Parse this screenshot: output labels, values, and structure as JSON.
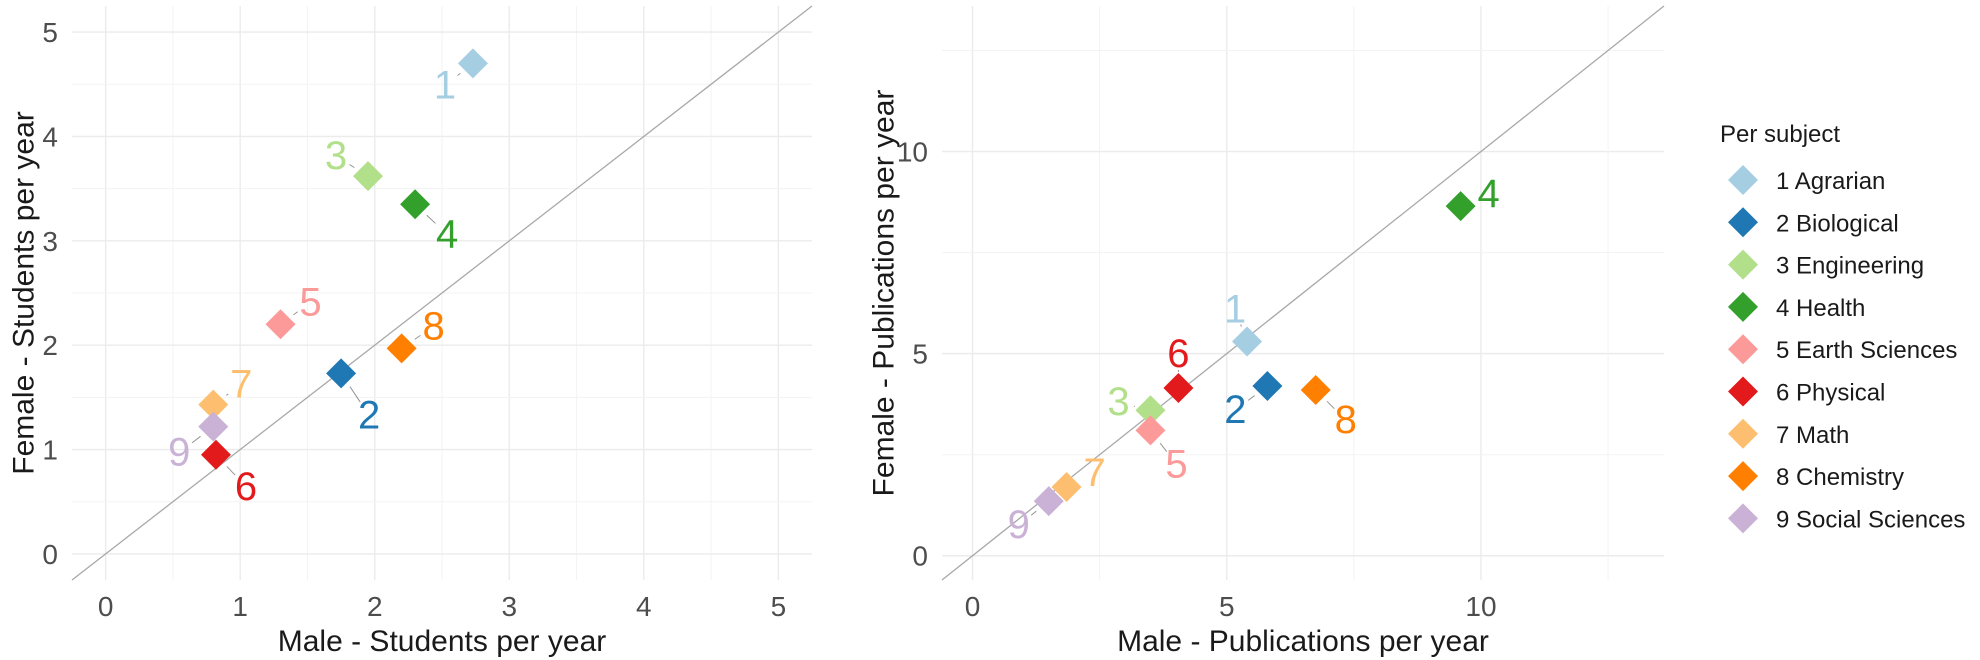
{
  "legend": {
    "title": "Per subject",
    "items": [
      {
        "id": 1,
        "label": "1 Agrarian",
        "color": "#a6cee3"
      },
      {
        "id": 2,
        "label": "2 Biological",
        "color": "#1f78b4"
      },
      {
        "id": 3,
        "label": "3 Engineering",
        "color": "#b2df8a"
      },
      {
        "id": 4,
        "label": "4 Health",
        "color": "#33a02c"
      },
      {
        "id": 5,
        "label": "5 Earth Sciences",
        "color": "#fb9a99"
      },
      {
        "id": 6,
        "label": "6 Physical",
        "color": "#e31a1c"
      },
      {
        "id": 7,
        "label": "7 Math",
        "color": "#fdbf6f"
      },
      {
        "id": 8,
        "label": "8 Chemistry",
        "color": "#ff7f00"
      },
      {
        "id": 9,
        "label": "9 Social Sciences",
        "color": "#cab2d6"
      }
    ]
  },
  "chart_data": [
    {
      "type": "scatter",
      "title": "",
      "xlabel": "Male - Students per year",
      "ylabel": "Female - Students per year",
      "xlim": [
        -0.25,
        5.25
      ],
      "ylim": [
        -0.25,
        5.25
      ],
      "xticks": [
        0,
        1,
        2,
        3,
        4,
        5
      ],
      "yticks": [
        0,
        1,
        2,
        3,
        4,
        5
      ],
      "grid": true,
      "reference_line": "y = x",
      "points": [
        {
          "id": 1,
          "label": "1",
          "x": 2.73,
          "y": 4.7
        },
        {
          "id": 2,
          "label": "2",
          "x": 1.75,
          "y": 1.73
        },
        {
          "id": 3,
          "label": "3",
          "x": 1.95,
          "y": 3.62
        },
        {
          "id": 4,
          "label": "4",
          "x": 2.3,
          "y": 3.35
        },
        {
          "id": 5,
          "label": "5",
          "x": 1.3,
          "y": 2.2
        },
        {
          "id": 6,
          "label": "6",
          "x": 0.82,
          "y": 0.95
        },
        {
          "id": 7,
          "label": "7",
          "x": 0.8,
          "y": 1.43
        },
        {
          "id": 8,
          "label": "8",
          "x": 2.2,
          "y": 1.97
        },
        {
          "id": 9,
          "label": "9",
          "x": 0.8,
          "y": 1.22
        }
      ]
    },
    {
      "type": "scatter",
      "title": "",
      "xlabel": "Male - Publications per year",
      "ylabel": "Female - Publications per year",
      "xlim": [
        -0.6,
        13.6
      ],
      "ylim": [
        -0.6,
        13.6
      ],
      "xticks": [
        0,
        5,
        10
      ],
      "yticks": [
        0,
        5,
        10
      ],
      "grid": true,
      "reference_line": "y = x",
      "points": [
        {
          "id": 1,
          "label": "1",
          "x": 5.4,
          "y": 5.3
        },
        {
          "id": 2,
          "label": "2",
          "x": 5.8,
          "y": 4.2
        },
        {
          "id": 3,
          "label": "3",
          "x": 3.5,
          "y": 3.6
        },
        {
          "id": 4,
          "label": "4",
          "x": 9.6,
          "y": 8.65
        },
        {
          "id": 5,
          "label": "5",
          "x": 3.5,
          "y": 3.1
        },
        {
          "id": 6,
          "label": "6",
          "x": 4.05,
          "y": 4.15
        },
        {
          "id": 7,
          "label": "7",
          "x": 1.85,
          "y": 1.7
        },
        {
          "id": 8,
          "label": "8",
          "x": 6.75,
          "y": 4.1
        },
        {
          "id": 9,
          "label": "9",
          "x": 1.5,
          "y": 1.35
        }
      ]
    }
  ]
}
